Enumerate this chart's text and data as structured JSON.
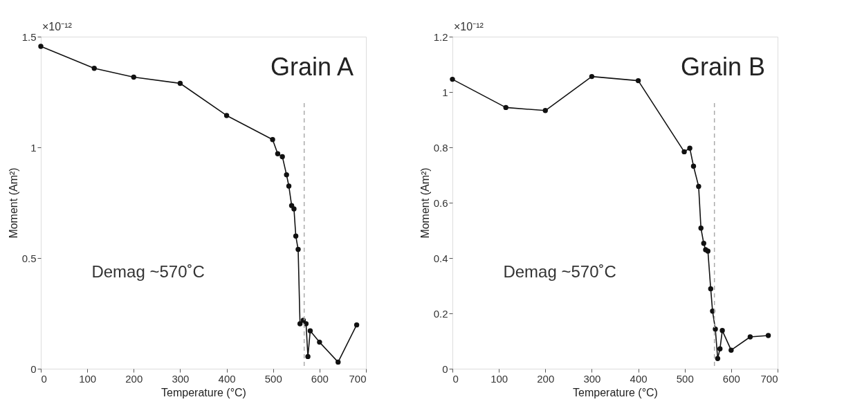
{
  "chart_data": [
    {
      "type": "line",
      "xlabel": "Temperature (°C)",
      "ylabel": "Moment (Am²)",
      "annotations": [
        "×10⁻¹²",
        "Grain A",
        "Demag ~570˚C"
      ],
      "x": [
        0,
        115,
        200,
        300,
        400,
        499,
        510,
        520,
        529,
        534,
        540,
        545,
        549,
        554,
        558,
        565,
        571,
        575,
        580,
        600,
        640,
        680
      ],
      "series": [
        {
          "color": "#111111",
          "values": [
            1.456,
            1.357,
            1.317,
            1.289,
            1.144,
            1.035,
            0.971,
            0.958,
            0.876,
            0.825,
            0.737,
            0.722,
            0.599,
            0.539,
            0.203,
            0.219,
            0.203,
            0.055,
            0.171,
            0.12,
            0.03,
            0.198
          ]
        }
      ],
      "xlim": [
        0,
        700
      ],
      "xticks": [
        0,
        100,
        200,
        300,
        400,
        500,
        600,
        700
      ],
      "ylim": [
        0,
        1.5
      ],
      "yticks": [
        0,
        0.5,
        1,
        1.5
      ],
      "ref_lines": [
        {
          "axis": "x",
          "value": 567,
          "color": "#aaaaaa",
          "line_style": "dashed"
        }
      ],
      "grid": false,
      "marker": "circle",
      "line_style": "solid"
    },
    {
      "type": "line",
      "xlabel": "Temperature (°C)",
      "ylabel": "Moment (Am²)",
      "annotations": [
        "×10⁻¹²",
        "Grain B",
        "Demag ~570˚C"
      ],
      "x": [
        0,
        115,
        200,
        300,
        400,
        499,
        511,
        519,
        530,
        535,
        541,
        545,
        550,
        556,
        560,
        566,
        571,
        576,
        581,
        600,
        641,
        680
      ],
      "series": [
        {
          "color": "#111111",
          "values": [
            1.046,
            0.944,
            0.933,
            1.056,
            1.041,
            0.784,
            0.797,
            0.732,
            0.659,
            0.508,
            0.453,
            0.43,
            0.425,
            0.289,
            0.208,
            0.143,
            0.037,
            0.072,
            0.138,
            0.067,
            0.115,
            0.12
          ]
        }
      ],
      "xlim": [
        0,
        700
      ],
      "xticks": [
        0,
        100,
        200,
        300,
        400,
        500,
        600,
        700
      ],
      "ylim": [
        0,
        1.2
      ],
      "yticks": [
        0,
        0.2,
        0.4,
        0.6,
        0.8,
        1,
        1.2
      ],
      "ref_lines": [
        {
          "axis": "x",
          "value": 564,
          "color": "#aaaaaa",
          "line_style": "dashed"
        }
      ],
      "grid": false,
      "marker": "circle",
      "line_style": "solid"
    }
  ]
}
